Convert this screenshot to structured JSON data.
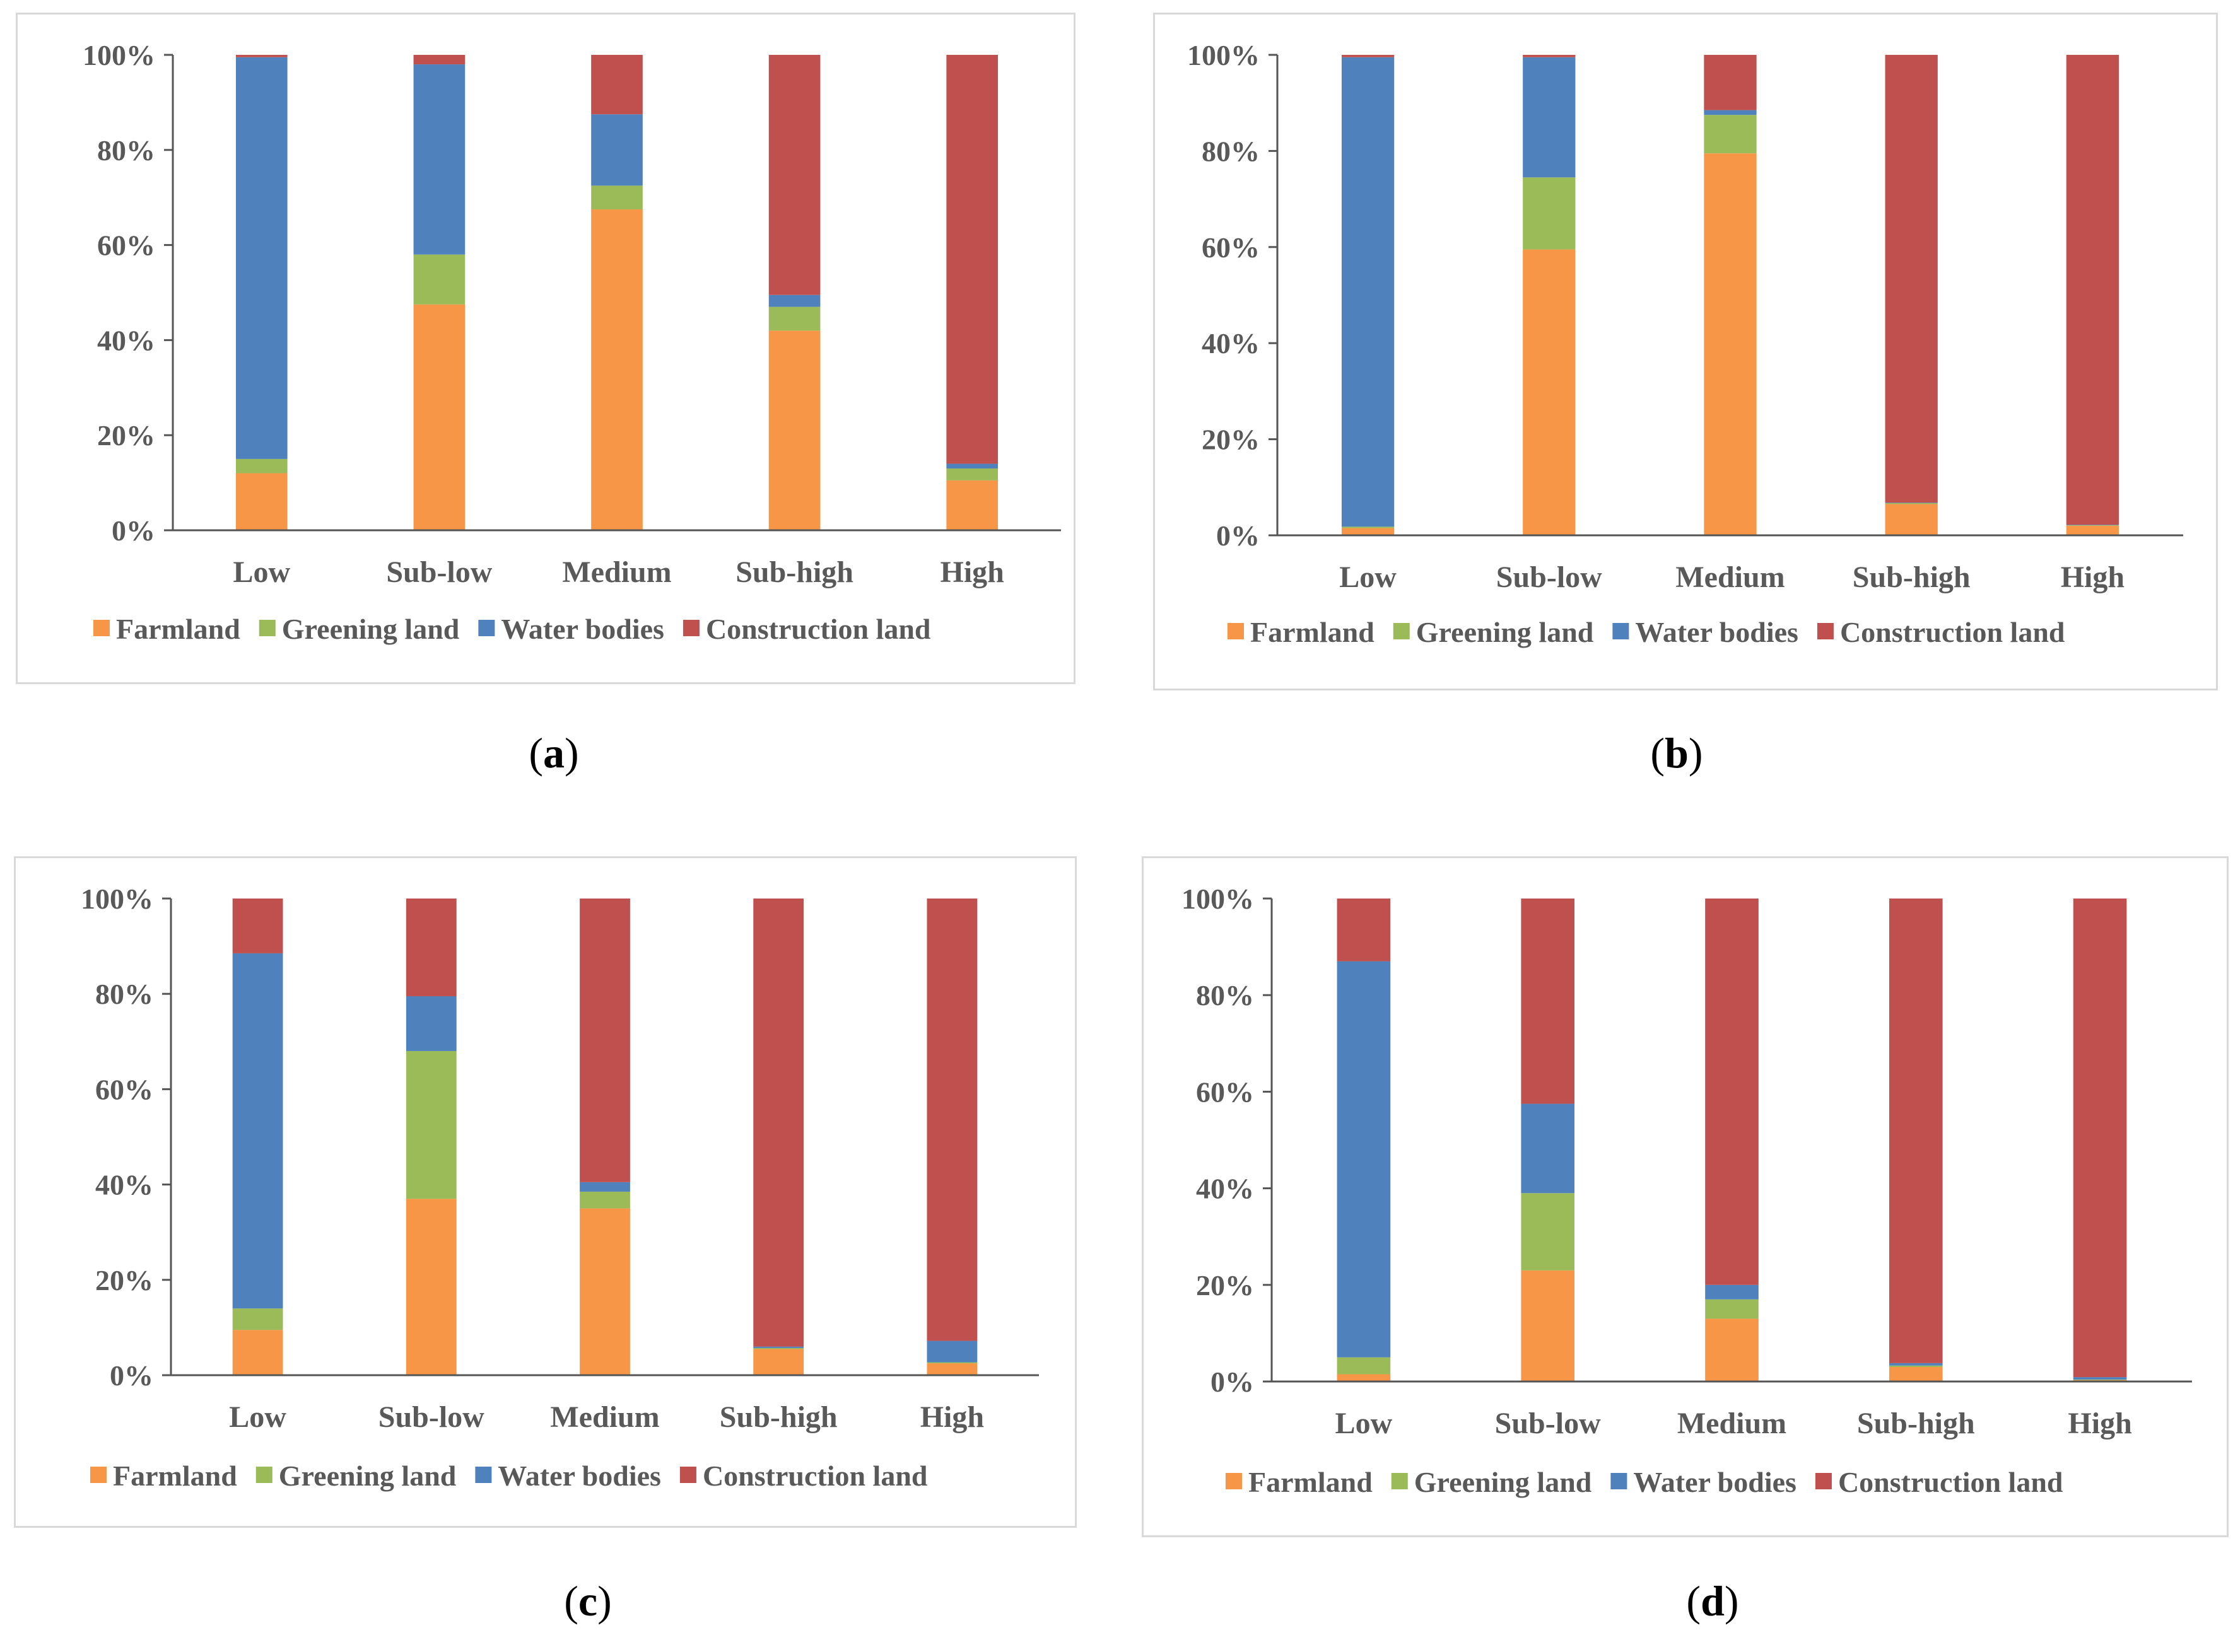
{
  "series_colors": {
    "Farmland": "#f79646",
    "Greening land": "#9bbb59",
    "Water bodies": "#4f81bd",
    "Construction land": "#c0504d"
  },
  "chart_data": [
    {
      "type": "bar",
      "stacked": true,
      "label": "a",
      "categories": [
        "Low",
        "Sub-low",
        "Medium",
        "Sub-high",
        "High"
      ],
      "series": [
        {
          "name": "Farmland",
          "values": [
            12,
            47.5,
            67.5,
            42,
            10.5
          ]
        },
        {
          "name": "Greening land",
          "values": [
            3,
            10.5,
            5,
            5,
            2.5
          ]
        },
        {
          "name": "Water bodies",
          "values": [
            84.5,
            40,
            15,
            2.5,
            1
          ]
        },
        {
          "name": "Construction land",
          "values": [
            0.5,
            2,
            12.5,
            50.5,
            86
          ]
        }
      ],
      "yticks": [
        "0%",
        "20%",
        "40%",
        "60%",
        "80%",
        "100%"
      ],
      "ylim": [
        0,
        100
      ],
      "legend": "bottom"
    },
    {
      "type": "bar",
      "stacked": true,
      "label": "b",
      "categories": [
        "Low",
        "Sub-low",
        "Medium",
        "Sub-high",
        "High"
      ],
      "series": [
        {
          "name": "Farmland",
          "values": [
            1.5,
            59.5,
            79.5,
            6.5,
            2
          ]
        },
        {
          "name": "Greening land",
          "values": [
            0.3,
            15,
            8,
            0.2,
            0.1
          ]
        },
        {
          "name": "Water bodies",
          "values": [
            97.7,
            25,
            1,
            0.1,
            0.1
          ]
        },
        {
          "name": "Construction land",
          "values": [
            0.5,
            0.5,
            11.5,
            93.2,
            97.8
          ]
        }
      ],
      "yticks": [
        "0%",
        "20%",
        "40%",
        "60%",
        "80%",
        "100%"
      ],
      "ylim": [
        0,
        100
      ],
      "legend": "bottom"
    },
    {
      "type": "bar",
      "stacked": true,
      "label": "c",
      "categories": [
        "Low",
        "Sub-low",
        "Medium",
        "Sub-high",
        "High"
      ],
      "series": [
        {
          "name": "Farmland",
          "values": [
            9.5,
            37,
            35,
            5.5,
            2.5
          ]
        },
        {
          "name": "Greening land",
          "values": [
            4.5,
            31,
            3.5,
            0.2,
            0.2
          ]
        },
        {
          "name": "Water bodies",
          "values": [
            74.5,
            11.5,
            2,
            0.3,
            4.5
          ]
        },
        {
          "name": "Construction land",
          "values": [
            11.5,
            20.5,
            59.5,
            94,
            92.8
          ]
        }
      ],
      "yticks": [
        "0%",
        "20%",
        "40%",
        "60%",
        "80%",
        "100%"
      ],
      "ylim": [
        0,
        100
      ],
      "legend": "bottom"
    },
    {
      "type": "bar",
      "stacked": true,
      "label": "d",
      "categories": [
        "Low",
        "Sub-low",
        "Medium",
        "Sub-high",
        "High"
      ],
      "series": [
        {
          "name": "Farmland",
          "values": [
            1.5,
            23,
            13,
            3,
            0.3
          ]
        },
        {
          "name": "Greening land",
          "values": [
            3.5,
            16,
            4,
            0.3,
            0.1
          ]
        },
        {
          "name": "Water bodies",
          "values": [
            82,
            18.5,
            3,
            0.5,
            0.5
          ]
        },
        {
          "name": "Construction land",
          "values": [
            13,
            42.5,
            80,
            96.2,
            99.1
          ]
        }
      ],
      "yticks": [
        "0%",
        "20%",
        "40%",
        "60%",
        "80%",
        "100%"
      ],
      "ylim": [
        0,
        100
      ],
      "legend": "bottom"
    }
  ]
}
